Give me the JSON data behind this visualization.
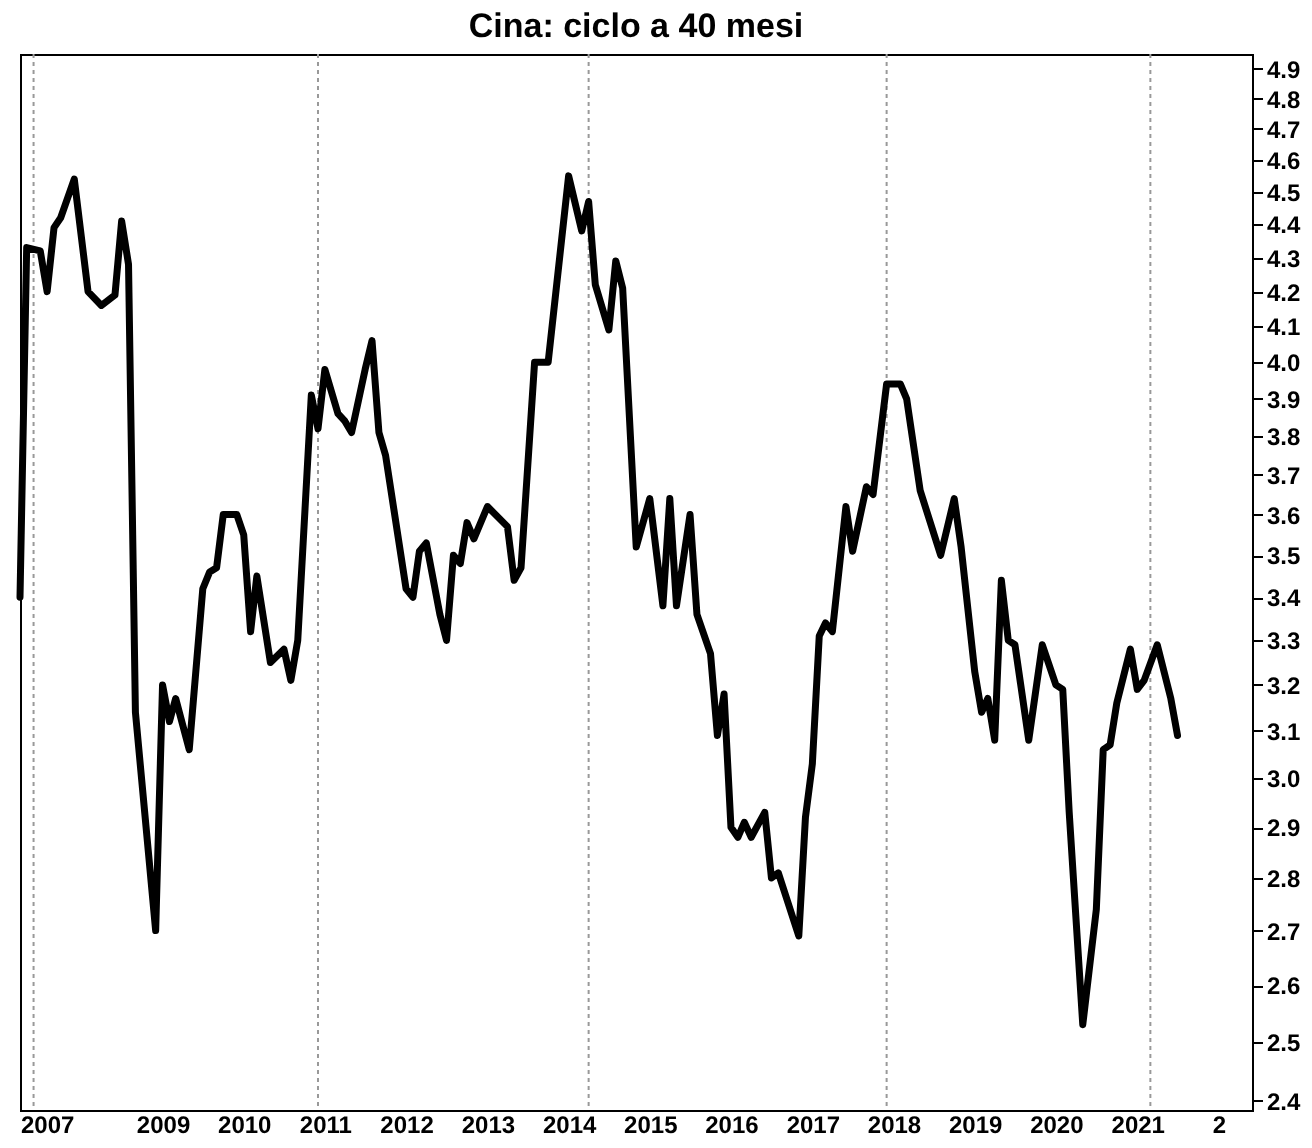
{
  "chart_data": {
    "type": "line",
    "title": "Cina: ciclo a 40 mesi",
    "x": [
      "2007-04",
      "2007-05",
      "2007-07",
      "2007-08",
      "2007-09",
      "2007-10",
      "2007-12",
      "2008-02",
      "2008-04",
      "2008-06",
      "2008-07",
      "2008-08",
      "2008-09",
      "2008-12",
      "2009-01",
      "2009-02",
      "2009-03",
      "2009-05",
      "2009-07",
      "2009-08",
      "2009-09",
      "2009-10",
      "2009-12",
      "2010-01",
      "2010-02",
      "2010-03",
      "2010-05",
      "2010-07",
      "2010-08",
      "2010-09",
      "2010-11",
      "2010-12",
      "2011-01",
      "2011-03",
      "2011-04",
      "2011-05",
      "2011-07",
      "2011-08",
      "2011-09",
      "2011-10",
      "2012-01",
      "2012-02",
      "2012-03",
      "2012-04",
      "2012-06",
      "2012-07",
      "2012-08",
      "2012-09",
      "2012-10",
      "2012-11",
      "2013-01",
      "2013-04",
      "2013-05",
      "2013-06",
      "2013-08",
      "2013-10",
      "2014-01",
      "2014-03",
      "2014-04",
      "2014-05",
      "2014-07",
      "2014-08",
      "2014-09",
      "2014-11",
      "2015-01",
      "2015-03",
      "2015-04",
      "2015-05",
      "2015-07",
      "2015-08",
      "2015-10",
      "2015-11",
      "2015-12",
      "2016-01",
      "2016-02",
      "2016-03",
      "2016-04",
      "2016-06",
      "2016-07",
      "2016-08",
      "2016-11",
      "2016-12",
      "2017-01",
      "2017-02",
      "2017-03",
      "2017-04",
      "2017-06",
      "2017-07",
      "2017-09",
      "2017-10",
      "2017-12",
      "2018-02",
      "2018-03",
      "2018-05",
      "2018-08",
      "2018-10",
      "2018-11",
      "2019-01",
      "2019-02",
      "2019-03",
      "2019-04",
      "2019-05",
      "2019-06",
      "2019-07",
      "2019-09",
      "2019-11",
      "2020-01",
      "2020-02",
      "2020-03",
      "2020-05",
      "2020-07",
      "2020-08",
      "2020-09",
      "2020-10",
      "2020-12",
      "2021-01",
      "2021-02",
      "2021-04",
      "2021-06",
      "2021-07"
    ],
    "series": [
      {
        "color": "#000000",
        "values": [
          3.4,
          4.33,
          4.32,
          4.2,
          4.39,
          4.42,
          4.54,
          4.2,
          4.16,
          4.19,
          4.41,
          4.28,
          3.14,
          2.7,
          3.2,
          3.12,
          3.17,
          3.06,
          3.42,
          3.46,
          3.47,
          3.6,
          3.6,
          3.55,
          3.32,
          3.45,
          3.25,
          3.28,
          3.21,
          3.3,
          3.91,
          3.82,
          3.98,
          3.86,
          3.84,
          3.81,
          3.98,
          4.06,
          3.81,
          3.75,
          3.42,
          3.4,
          3.51,
          3.53,
          3.36,
          3.3,
          3.5,
          3.48,
          3.58,
          3.54,
          3.62,
          3.57,
          3.44,
          3.47,
          4.0,
          4.0,
          4.55,
          4.38,
          4.47,
          4.22,
          4.09,
          4.29,
          4.21,
          3.52,
          3.64,
          3.38,
          3.64,
          3.38,
          3.6,
          3.36,
          3.27,
          3.09,
          3.18,
          2.9,
          2.88,
          2.91,
          2.88,
          2.93,
          2.8,
          2.81,
          2.69,
          2.92,
          3.03,
          3.31,
          3.34,
          3.32,
          3.62,
          3.51,
          3.67,
          3.65,
          3.94,
          3.94,
          3.9,
          3.66,
          3.5,
          3.64,
          3.52,
          3.23,
          3.14,
          3.17,
          3.08,
          3.44,
          3.3,
          3.29,
          3.08,
          3.29,
          3.2,
          3.19,
          2.93,
          2.53,
          2.74,
          3.06,
          3.07,
          3.16,
          3.28,
          3.19,
          3.21,
          3.29,
          3.17,
          3.09
        ]
      }
    ],
    "xlim": [
      "2007-04",
      "2022-06"
    ],
    "xticks": [
      {
        "value": "2007-04",
        "label": "2007"
      },
      {
        "value": "2009",
        "label": "2009"
      },
      {
        "value": "2010",
        "label": "2010"
      },
      {
        "value": "2011",
        "label": "2011"
      },
      {
        "value": "2012",
        "label": "2012"
      },
      {
        "value": "2013",
        "label": "2013"
      },
      {
        "value": "2014",
        "label": "2014"
      },
      {
        "value": "2015",
        "label": "2015"
      },
      {
        "value": "2016",
        "label": "2016"
      },
      {
        "value": "2017",
        "label": "2017"
      },
      {
        "value": "2018",
        "label": "2018"
      },
      {
        "value": "2019",
        "label": "2019"
      },
      {
        "value": "2020",
        "label": "2020"
      },
      {
        "value": "2021",
        "label": "2021"
      },
      {
        "value": "2022",
        "label": "2"
      }
    ],
    "ylim": [
      2.385,
      4.95
    ],
    "yticks": [
      2.4,
      2.5,
      2.6,
      2.7,
      2.8,
      2.9,
      {
        "value": 3,
        "label": "3.0"
      },
      3.1,
      3.2,
      3.3,
      3.4,
      3.5,
      3.6,
      3.7,
      3.8,
      3.9,
      {
        "value": 4,
        "label": "4.0"
      },
      4.1,
      4.2,
      4.3,
      4.4,
      4.5,
      4.6,
      4.7,
      4.8,
      4.9
    ],
    "log": "y",
    "grid": false,
    "line_style": "solid",
    "ref_lines": [
      {
        "axis": "x",
        "value": "2007-06",
        "label": null,
        "color": "#999999",
        "line_style": "dotted"
      },
      {
        "axis": "x",
        "value": "2010-12",
        "label": null,
        "color": "#999999",
        "line_style": "dotted"
      },
      {
        "axis": "x",
        "value": "2014-04",
        "label": null,
        "color": "#999999",
        "line_style": "dotted"
      },
      {
        "axis": "x",
        "value": "2017-12",
        "label": null,
        "color": "#999999",
        "line_style": "dotted"
      },
      {
        "axis": "x",
        "value": "2021-03",
        "label": null,
        "color": "#999999",
        "line_style": "dotted"
      }
    ]
  }
}
